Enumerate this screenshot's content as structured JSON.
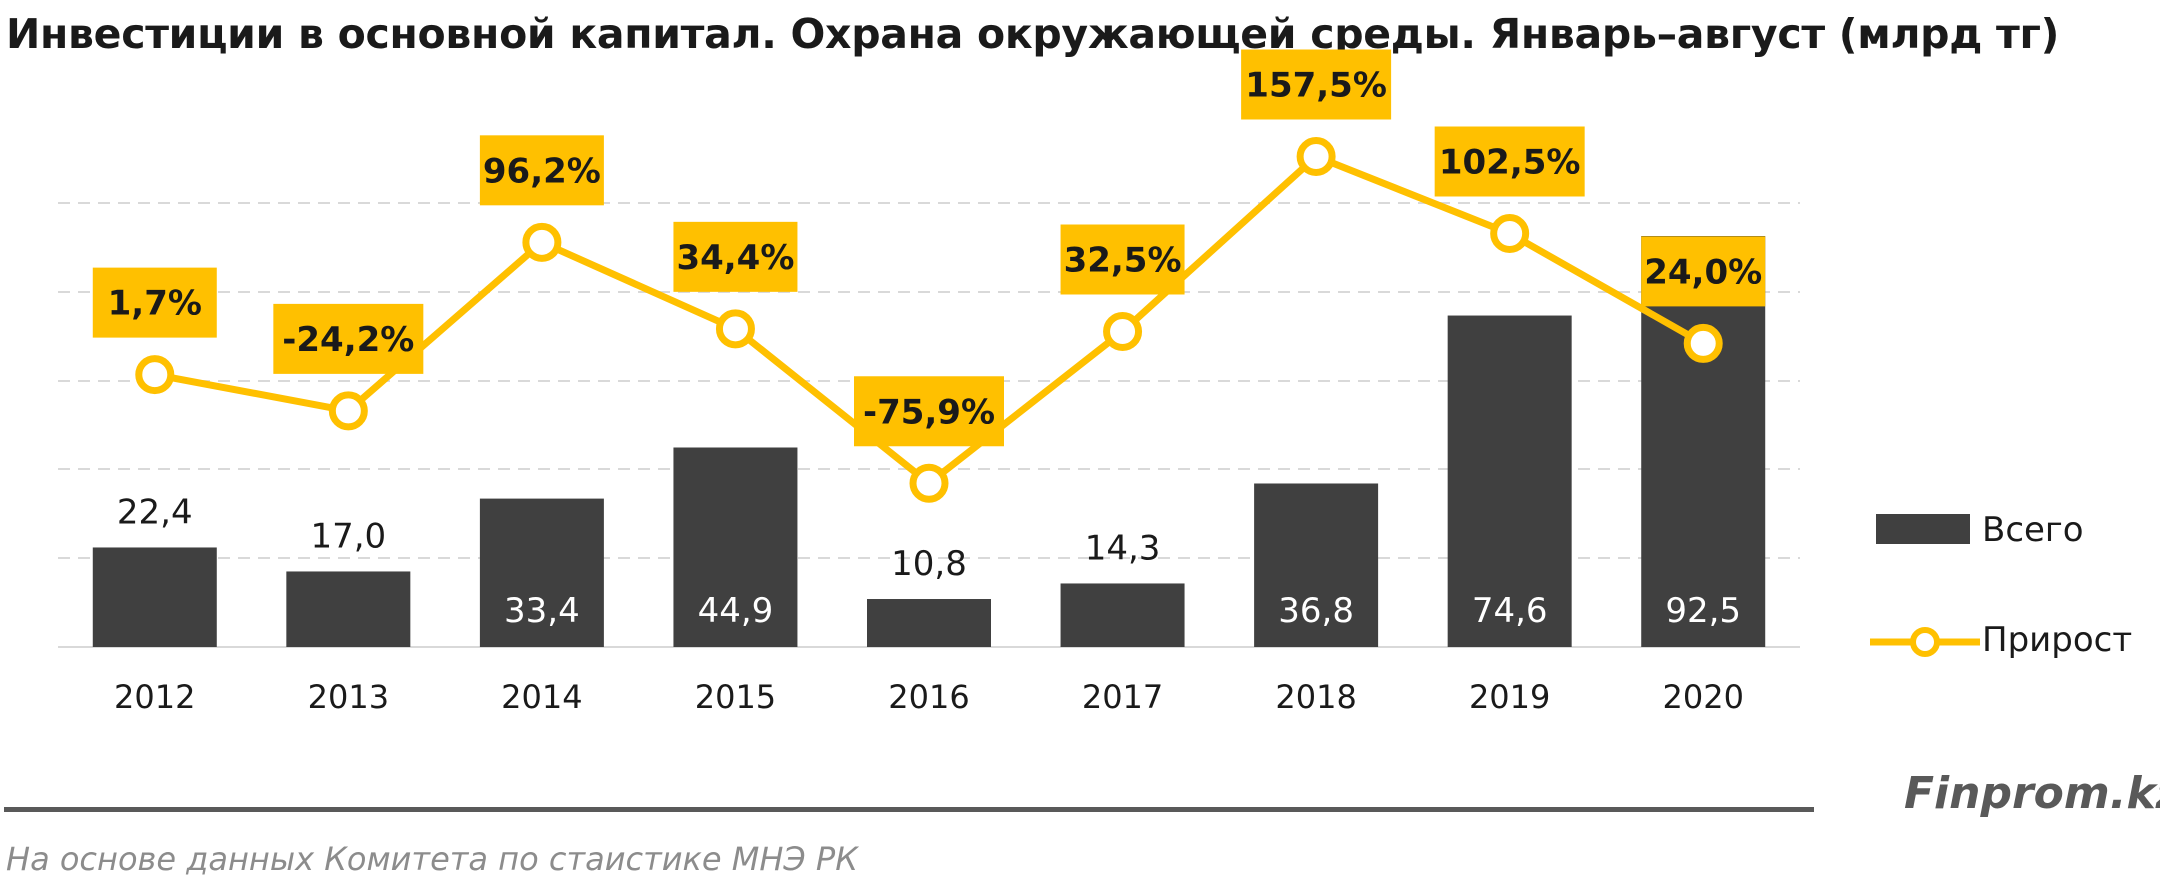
{
  "title": "Инвестиции в основной капитал. Охрана окружающей среды. Январь–август (млрд тг)",
  "brand": "Finprom.kz",
  "source": "На основе данных  Комитета по стаистике МНЭ РК",
  "colors": {
    "bars": "#404040",
    "line": "#FFC000",
    "label_box": "#FFC000",
    "grid": "#D9D9D9",
    "text": "#1a1a1a"
  },
  "legend": {
    "bars_label": "Всего",
    "line_label": "Прирост"
  },
  "chart_data": {
    "type": "bar",
    "categories": [
      "2012",
      "2013",
      "2014",
      "2015",
      "2016",
      "2017",
      "2018",
      "2019",
      "2020"
    ],
    "series": [
      {
        "name": "Всего",
        "type": "bar",
        "axis": "left",
        "values": [
          22.4,
          17.0,
          33.4,
          44.9,
          10.8,
          14.3,
          36.8,
          74.6,
          92.5
        ],
        "labels": [
          "22,4",
          "17,0",
          "33,4",
          "44,9",
          "10,8",
          "14,3",
          "36,8",
          "74,6",
          "92,5"
        ]
      },
      {
        "name": "Прирост",
        "type": "line",
        "axis": "right",
        "values": [
          1.7,
          -24.2,
          96.2,
          34.4,
          -75.9,
          32.5,
          157.5,
          102.5,
          24.0
        ],
        "labels": [
          "1,7%",
          "-24,2%",
          "96,2%",
          "34,4%",
          "-75,9%",
          "32,5%",
          "157,5%",
          "102,5%",
          "24,0%"
        ]
      }
    ],
    "legend_position": "right",
    "grid": true,
    "gridline_style": "dashed"
  }
}
